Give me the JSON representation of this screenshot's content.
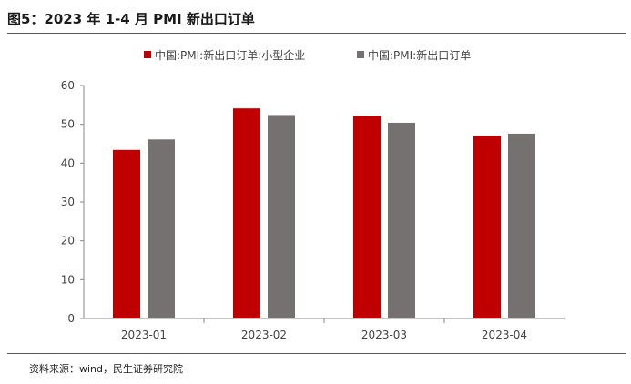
{
  "header": {
    "title": "图5：2023 年 1-4 月 PMI 新出口订单"
  },
  "footer": {
    "source": "资料来源：wind，民生证券研究院"
  },
  "chart_data": {
    "type": "bar",
    "categories": [
      "2023-01",
      "2023-02",
      "2023-03",
      "2023-04"
    ],
    "series": [
      {
        "name": "中国:PMI:新出口订单:小型企业",
        "values": [
          43.4,
          54.1,
          52.1,
          47.0
        ],
        "color": "#c00000"
      },
      {
        "name": "中国:PMI:新出口订单",
        "values": [
          46.1,
          52.4,
          50.4,
          47.6
        ],
        "color": "#767171"
      }
    ],
    "ylim": [
      0,
      60
    ],
    "yticks": [
      0,
      10,
      20,
      30,
      40,
      50,
      60
    ],
    "grid": false,
    "legend_position": "top"
  }
}
